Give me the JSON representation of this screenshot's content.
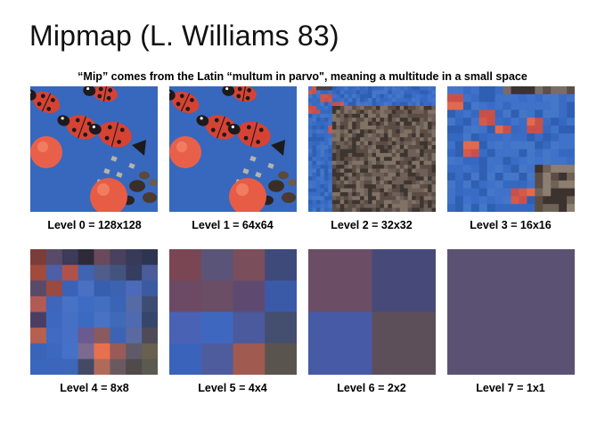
{
  "slide": {
    "title": "Mipmap (L. Williams 83)",
    "subtitle": "“Mip” comes from the Latin “multum in parvo\", meaning a multitude in a small space"
  },
  "levels": [
    {
      "label": "Level 0 = 128x128",
      "image": "ladybug-texture"
    },
    {
      "label": "Level 1 = 64x64",
      "image": "ladybug-texture"
    },
    {
      "label": "Level 2 = 32x32",
      "image": "ladybug-texture-pixelated"
    },
    {
      "label": "Level 3 = 16x16",
      "image": "ladybug-texture-pixelated"
    },
    {
      "label": "Level 4 = 8x8",
      "image": "color-grid"
    },
    {
      "label": "Level 5 = 4x4",
      "image": "color-grid"
    },
    {
      "label": "Level 6 = 2x2",
      "image": "color-grid"
    },
    {
      "label": "Level 7 = 1x1",
      "image": "solid-color"
    }
  ],
  "colors": {
    "background_blue": "#3b6dc4",
    "ladybug_red": "#d94a3a",
    "ladybug_black": "#1e1a1c",
    "level7_fill": "#5b5273"
  }
}
